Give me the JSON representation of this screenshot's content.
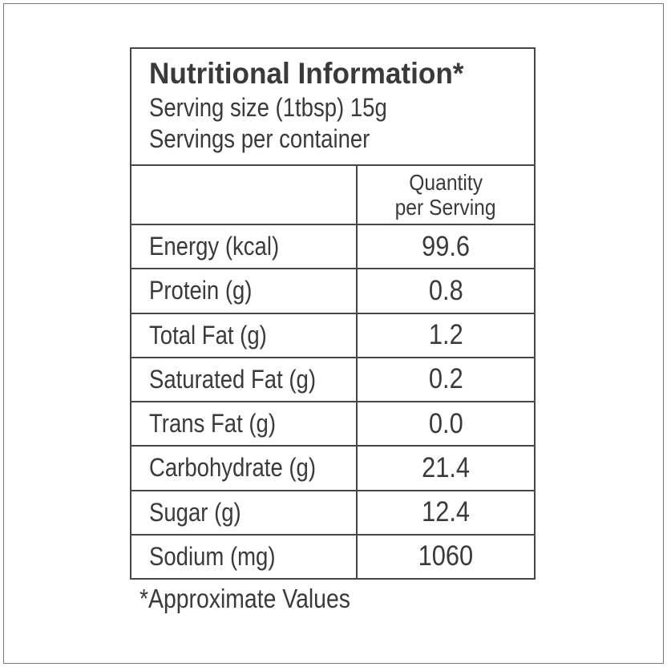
{
  "label": {
    "title": "Nutritional Information*",
    "serving_size_line": "Serving size (1tbsp) 15g",
    "servings_line": "Servings per container",
    "column_header": {
      "line1": "Quantity",
      "line2": "per Serving"
    },
    "rows": [
      {
        "name": "Energy (kcal)",
        "value": "99.6"
      },
      {
        "name": "Protein (g)",
        "value": "0.8"
      },
      {
        "name": "Total Fat (g)",
        "value": "1.2"
      },
      {
        "name": "Saturated Fat (g)",
        "value": "0.2"
      },
      {
        "name": "Trans Fat (g)",
        "value": "0.0"
      },
      {
        "name": "Carbohydrate (g)",
        "value": "21.4"
      },
      {
        "name": "Sugar (g)",
        "value": "12.4"
      },
      {
        "name": "Sodium (mg)",
        "value": "1060"
      }
    ],
    "footnote": "*Approximate Values",
    "colors": {
      "text": "#3a3a3c",
      "table_border": "#464648",
      "frame_border": "#7a7a7c",
      "background": "#ffffff"
    }
  }
}
